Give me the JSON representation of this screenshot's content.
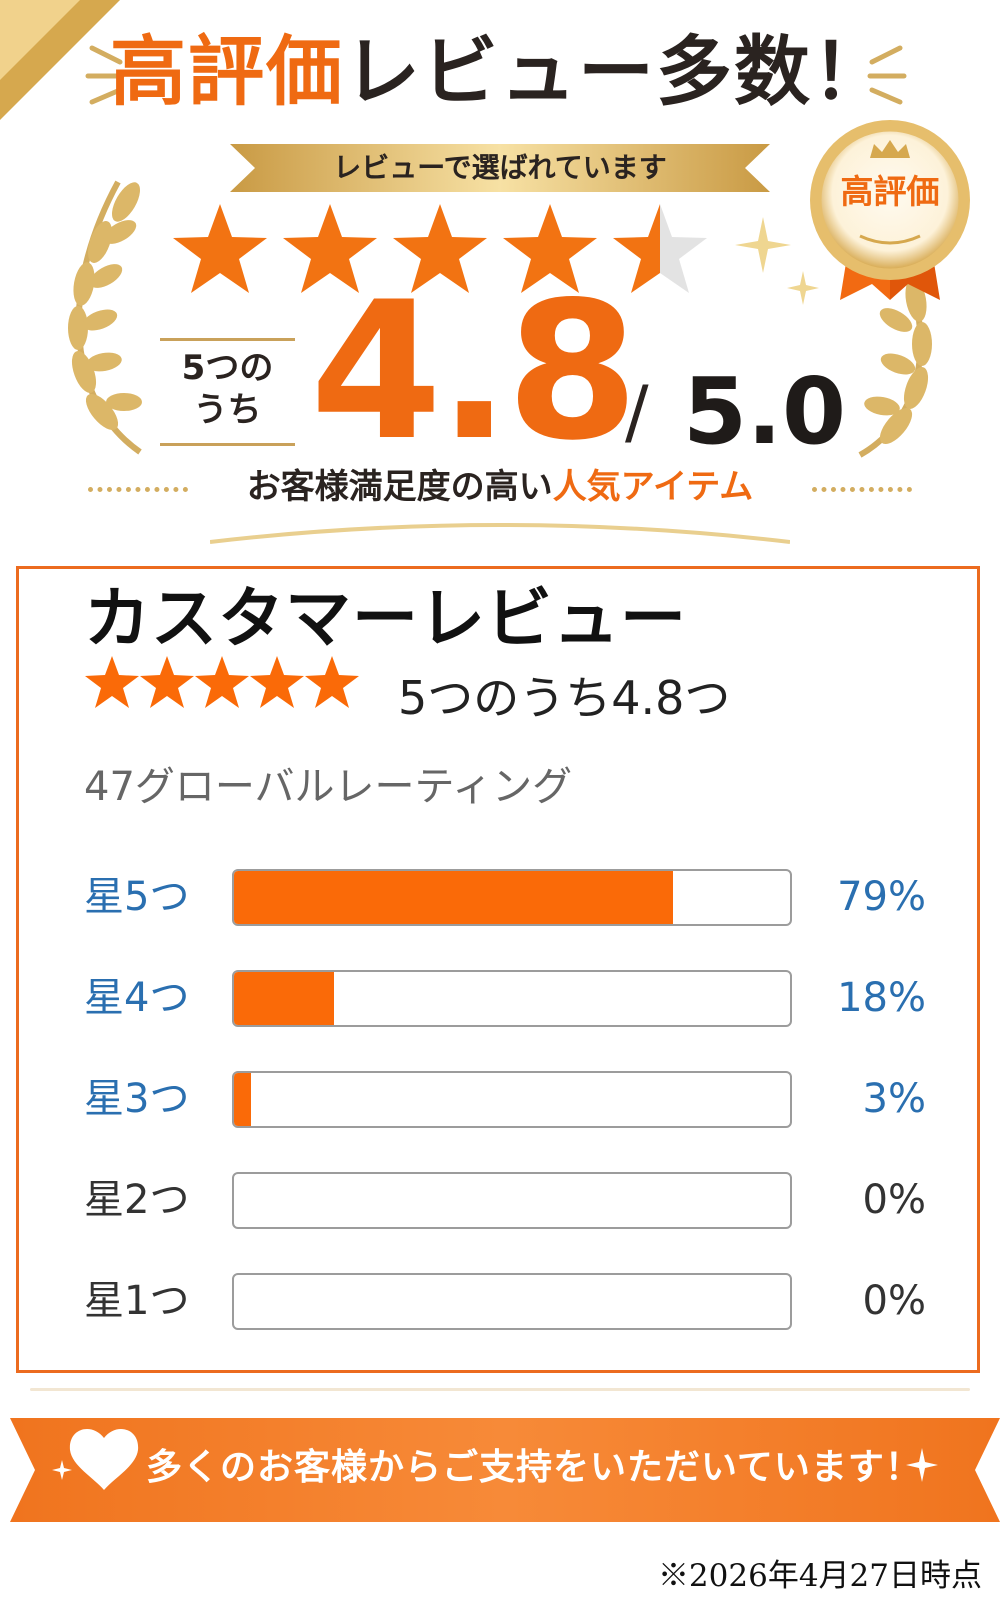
{
  "promo": {
    "headline_orange": "高評価",
    "headline_dark": "レビュー多数！",
    "ribbon_text": "レビューで選ばれています",
    "stars_filled": 4.5,
    "score": "4.8",
    "score_prefix_line1": "5つの",
    "score_prefix_line2": "うち",
    "slash": "/",
    "max_score": "5.0",
    "tagline_dark": "お客様満足度の高い",
    "tagline_orange": "人気アイテム",
    "seal_text": "高評価"
  },
  "review": {
    "title": "カスタマーレビュー",
    "stars_filled": 5,
    "rating_text": "5つのうち4.8つ",
    "global_count": "47グローバルレーティング",
    "rows": [
      {
        "label": "星5つ",
        "percent_text": "79%",
        "percent": 79
      },
      {
        "label": "星4つ",
        "percent_text": "18%",
        "percent": 18
      },
      {
        "label": "星3つ",
        "percent_text": "3%",
        "percent": 3
      },
      {
        "label": "星2つ",
        "percent_text": "0%",
        "percent": 0
      },
      {
        "label": "星1つ",
        "percent_text": "0%",
        "percent": 0
      }
    ]
  },
  "banner": {
    "text": "多くのお客様からご支持をいただいています！"
  },
  "footnote": "※2026年4月27日時点",
  "colors": {
    "orange": "#ef6a12",
    "bar_orange": "#fa6a08",
    "gold": "#d3ad60",
    "link_blue": "#2a6fb0"
  }
}
